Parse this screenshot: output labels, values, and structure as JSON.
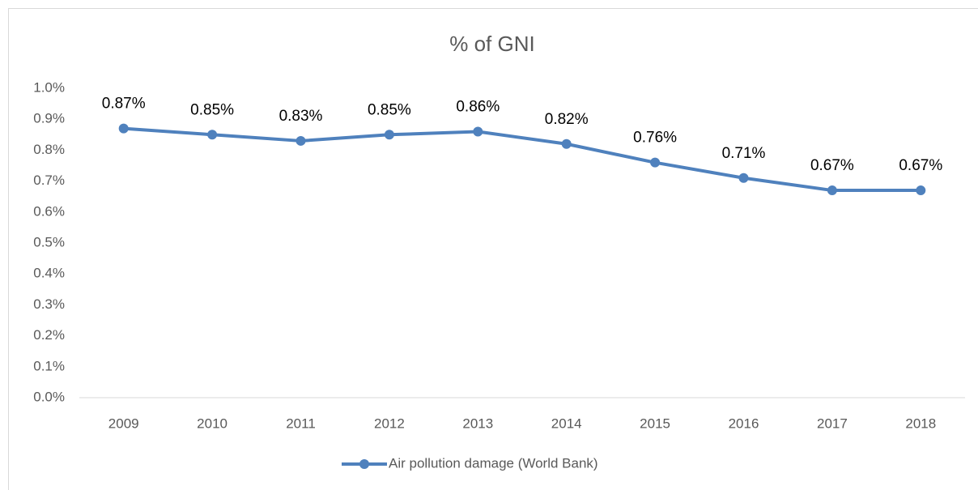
{
  "chart_data": {
    "type": "line",
    "title": "% of GNI",
    "categories": [
      "2009",
      "2010",
      "2011",
      "2012",
      "2013",
      "2014",
      "2015",
      "2016",
      "2017",
      "2018"
    ],
    "series": [
      {
        "name": "Air pollution damage (World Bank)",
        "color": "#4f81bd",
        "values": [
          0.87,
          0.85,
          0.83,
          0.85,
          0.86,
          0.82,
          0.76,
          0.71,
          0.67,
          0.67
        ],
        "value_labels": [
          "0.87%",
          "0.85%",
          "0.83%",
          "0.85%",
          "0.86%",
          "0.82%",
          "0.76%",
          "0.71%",
          "0.67%",
          "0.67%"
        ]
      }
    ],
    "ylim": [
      0,
      1
    ],
    "yticks": [
      {
        "value": 0,
        "label": "0.0%"
      },
      {
        "value": 0.1,
        "label": "0.1%"
      },
      {
        "value": 0.2,
        "label": "0.2%"
      },
      {
        "value": 0.3,
        "label": "0.3%"
      },
      {
        "value": 0.4,
        "label": "0.4%"
      },
      {
        "value": 0.5,
        "label": "0.5%"
      },
      {
        "value": 0.6,
        "label": "0.6%"
      },
      {
        "value": 0.7,
        "label": "0.7%"
      },
      {
        "value": 0.8,
        "label": "0.8%"
      },
      {
        "value": 0.9,
        "label": "0.9%"
      },
      {
        "value": 1,
        "label": "1.0%"
      }
    ],
    "grid": false,
    "legend": "bottom"
  }
}
